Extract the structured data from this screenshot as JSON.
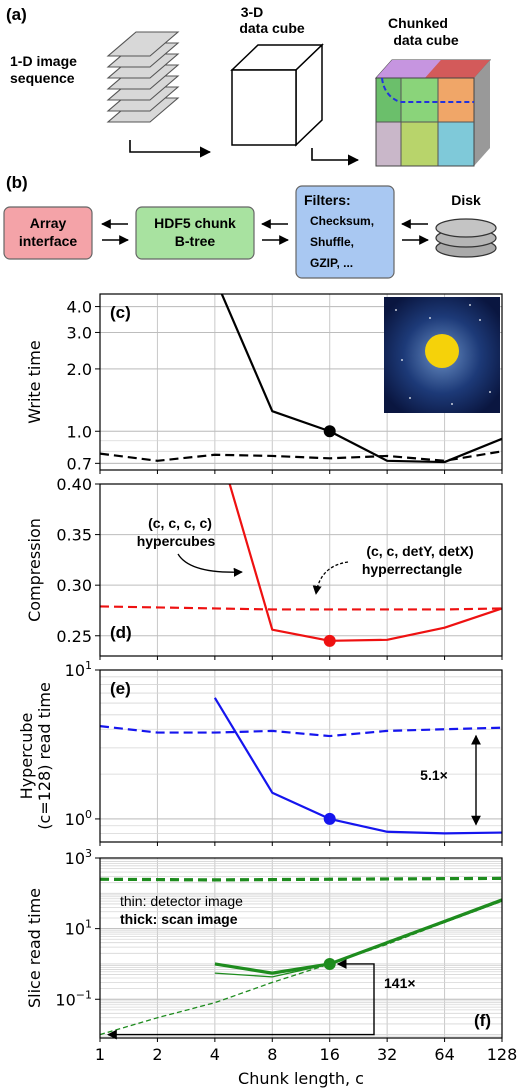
{
  "panel_a": {
    "letter": "(a)",
    "label_sequence": [
      "1-D image",
      "sequence"
    ],
    "label_cube": [
      "3-D",
      "data cube"
    ],
    "label_chunked": [
      "Chunked",
      "data cube"
    ]
  },
  "panel_b": {
    "letter": "(b)",
    "array_interface": [
      "Array",
      "interface"
    ],
    "btree": [
      "HDF5 chunk",
      "B-tree"
    ],
    "filters_title": "Filters:",
    "filters_items": [
      "Checksum,",
      "Shuffle,",
      "GZIP, ..."
    ],
    "disk": "Disk",
    "colors": {
      "array": "#f4a3a8",
      "btree": "#a8e2a0",
      "filters": "#a9c8f2"
    }
  },
  "chart_data": [
    {
      "panel": "(c)",
      "type": "line",
      "ylabel": "Write time",
      "yscale": "log",
      "ylim": [
        0.65,
        4.6
      ],
      "yticks": [
        0.7,
        1.0,
        2.0,
        3.0,
        4.0
      ],
      "ytick_labels": [
        "0.7",
        "1.0",
        "2.0",
        "3.0",
        "4.0"
      ],
      "x": [
        1,
        2,
        4,
        8,
        16,
        32,
        64,
        128
      ],
      "series": [
        {
          "style": "solid",
          "color": "#000000",
          "values": [
            null,
            null,
            5.5,
            1.25,
            1.0,
            0.72,
            0.71,
            0.92
          ]
        },
        {
          "style": "dashed",
          "color": "#000000",
          "values": [
            0.78,
            0.72,
            0.77,
            0.76,
            0.74,
            0.76,
            0.72,
            0.8
          ]
        }
      ],
      "marker": {
        "x": 16,
        "y": 1.0,
        "color": "#000000"
      },
      "inset": "detector-image"
    },
    {
      "panel": "(d)",
      "type": "line",
      "ylabel": "Compression",
      "yscale": "linear",
      "ylim": [
        0.23,
        0.4
      ],
      "yticks": [
        0.25,
        0.3,
        0.35,
        0.4
      ],
      "ytick_labels": [
        "0.25",
        "0.30",
        "0.35",
        "0.40"
      ],
      "x": [
        1,
        2,
        4,
        8,
        16,
        32,
        64,
        128
      ],
      "series": [
        {
          "style": "solid",
          "color": "#ee1111",
          "values": [
            null,
            null,
            0.45,
            0.256,
            0.245,
            0.246,
            0.258,
            0.277
          ]
        },
        {
          "style": "dashed",
          "color": "#ee1111",
          "values": [
            0.279,
            0.278,
            0.277,
            0.276,
            0.276,
            0.276,
            0.276,
            0.277
          ]
        }
      ],
      "marker": {
        "x": 16,
        "y": 0.245,
        "color": "#ee1111"
      },
      "annotations": {
        "hypercubes": [
          "(c, c, c, c)",
          "hypercubes"
        ],
        "hyperrectangle": [
          "(c, c, detY, detX)",
          "hyperrectangle"
        ]
      }
    },
    {
      "panel": "(e)",
      "type": "line",
      "ylabel": [
        "Hypercube",
        "(c=128) read time"
      ],
      "yscale": "log",
      "ylim": [
        0.7,
        10
      ],
      "yticks": [
        1,
        10
      ],
      "ytick_labels": [
        "10^0",
        "10^1"
      ],
      "x": [
        1,
        2,
        4,
        8,
        16,
        32,
        64,
        128
      ],
      "series": [
        {
          "style": "solid",
          "color": "#1515ee",
          "values": [
            null,
            null,
            6.5,
            1.5,
            1.0,
            0.82,
            0.8,
            0.81
          ]
        },
        {
          "style": "dashed",
          "color": "#1515ee",
          "values": [
            4.2,
            3.8,
            3.8,
            3.9,
            3.6,
            3.9,
            4.0,
            4.1
          ]
        }
      ],
      "marker": {
        "x": 16,
        "y": 1.0,
        "color": "#1515ee"
      },
      "ratio_label": "5.1×"
    },
    {
      "panel": "(f)",
      "type": "line",
      "ylabel": "Slice read time",
      "xlabel": "Chunk length, c",
      "yscale": "log",
      "ylim": [
        0.008,
        1000
      ],
      "yticks": [
        0.1,
        10,
        1000
      ],
      "ytick_labels": [
        "10^-1",
        "10^1",
        "10^3"
      ],
      "x": [
        1,
        2,
        4,
        8,
        16,
        32,
        64,
        128
      ],
      "xtick_labels": [
        "1",
        "2",
        "4",
        "8",
        "16",
        "32",
        "64",
        "128"
      ],
      "series": [
        {
          "name": "thick-dashed",
          "style": "dashed",
          "width": "thick",
          "color": "#1e8c1e",
          "values": [
            250,
            245,
            240,
            245,
            250,
            255,
            260,
            265
          ]
        },
        {
          "name": "thick-solid",
          "style": "solid",
          "width": "thick",
          "color": "#1e8c1e",
          "values": [
            null,
            null,
            1.0,
            0.55,
            1.0,
            4.0,
            16.0,
            65.0
          ]
        },
        {
          "name": "thin-solid",
          "style": "solid",
          "width": "thin",
          "color": "#1e8c1e",
          "values": [
            null,
            null,
            0.55,
            0.43,
            1.0,
            4.0,
            15.0,
            60.0
          ]
        },
        {
          "name": "thin-dashed",
          "style": "dashed",
          "width": "thin",
          "color": "#1e8c1e",
          "values": [
            0.01,
            0.03,
            0.08,
            0.3,
            1.0,
            3.6,
            15.0,
            60.0
          ]
        }
      ],
      "marker": {
        "x": 16,
        "y": 1.0,
        "color": "#1e8c1e"
      },
      "legend_text": [
        "thin: detector image",
        "thick: scan image"
      ],
      "ratio_label": "141×"
    }
  ]
}
